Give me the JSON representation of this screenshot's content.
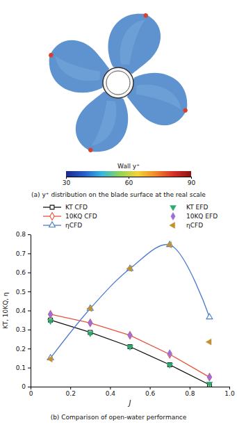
{
  "chart_data": [
    {
      "type": "surface",
      "title": "(a) y⁺ distribution on the blade surface at the real scale",
      "colorbar_label": "Wall y⁺",
      "colorbar_range": [
        30,
        90
      ],
      "colorbar_ticks": [
        30,
        60,
        90
      ]
    },
    {
      "type": "line",
      "title": "(b) Comparison of open-water performance",
      "xlabel": "J",
      "ylabel": "KT, 10KQ, η",
      "xlim": [
        0,
        1
      ],
      "xticks": [
        0,
        0.2,
        0.4,
        0.6,
        0.8,
        {
          "value": 1,
          "label": "1.0"
        }
      ],
      "ylim": [
        0,
        0.8
      ],
      "yticks": [
        0,
        0.1,
        0.2,
        0.3,
        0.4,
        0.5,
        0.6,
        0.7,
        0.8
      ],
      "legend": "top",
      "x": [
        0.1,
        0.3,
        0.5,
        0.7,
        0.9
      ],
      "series": [
        {
          "name": "KT CFD",
          "color": "#111111",
          "marker": "square-open",
          "line_style": "solid",
          "values": [
            0.35,
            0.285,
            0.21,
            0.115,
            0.01
          ]
        },
        {
          "name": "10KQ CFD",
          "color": "#e8533a",
          "marker": "diamond-open",
          "line_style": "solid",
          "values": [
            0.38,
            0.335,
            0.27,
            0.17,
            0.05
          ]
        },
        {
          "name": "ηCFD",
          "color": "#4a7bd0",
          "marker": "triangle-up-open",
          "line_style": "smooth",
          "values": [
            0.15,
            0.41,
            0.62,
            0.745,
            0.365
          ]
        },
        {
          "name": "KT EFD",
          "color": "#2eaa6e",
          "marker": "triangle-down",
          "line_style": "none",
          "values": [
            0.345,
            0.28,
            0.21,
            0.115,
            0.015
          ]
        },
        {
          "name": "10KQ EFD",
          "color": "#9b6fd6",
          "marker": "diamond",
          "line_style": "none",
          "values": [
            0.38,
            0.335,
            0.27,
            0.175,
            0.05
          ]
        },
        {
          "name": "ηCFD",
          "color": "#c0922f",
          "marker": "triangle-left",
          "line_style": "none",
          "values": [
            0.145,
            0.41,
            0.62,
            0.745,
            0.235
          ]
        }
      ]
    }
  ]
}
